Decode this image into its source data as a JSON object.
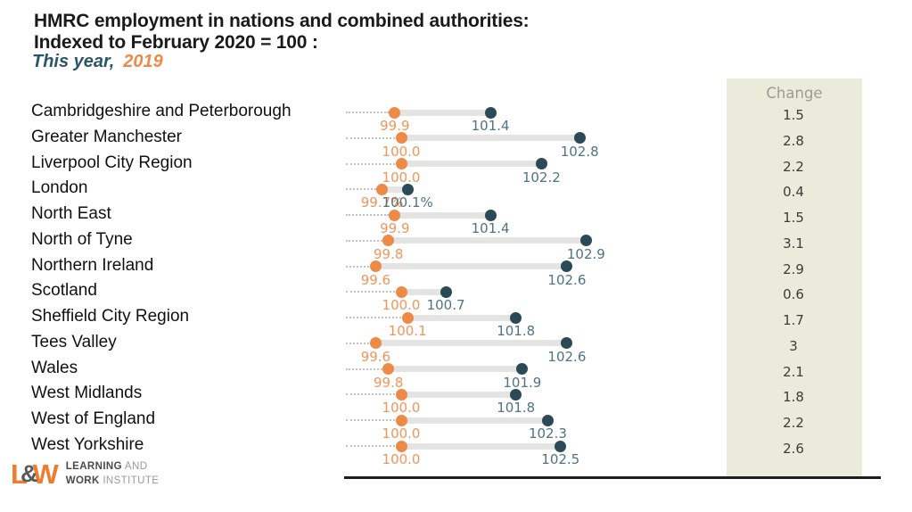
{
  "chart_data": {
    "type": "dumbbell",
    "title_line1": "HMRC employment in nations and combined authorities:",
    "title_line2": "Indexed to February 2020 = 100 :",
    "legend": {
      "this_year_label": "This year,",
      "year_2019_label": "2019"
    },
    "series_names": [
      "This year",
      "2019"
    ],
    "x_base": 100,
    "xlim": [
      99.1,
      103.5
    ],
    "change_header": "Change",
    "rows": [
      {
        "label": "Cambridgeshire and Peterborough",
        "this_year": 99.9,
        "this_year_label": "99.9",
        "y2019": 101.4,
        "y2019_label": "101.4",
        "change": "1.5"
      },
      {
        "label": "Greater Manchester",
        "this_year": 100.0,
        "this_year_label": "100.0",
        "y2019": 102.8,
        "y2019_label": "102.8",
        "change": "2.8"
      },
      {
        "label": "Liverpool City Region",
        "this_year": 100.0,
        "this_year_label": "100.0",
        "y2019": 102.2,
        "y2019_label": "102.2",
        "change": "2.2"
      },
      {
        "label": "London",
        "this_year": 99.7,
        "this_year_label": "99.7%",
        "y2019": 100.1,
        "y2019_label": "100.1%",
        "change": "0.4"
      },
      {
        "label": "North East",
        "this_year": 99.9,
        "this_year_label": "99.9",
        "y2019": 101.4,
        "y2019_label": "101.4",
        "change": "1.5"
      },
      {
        "label": "North of Tyne",
        "this_year": 99.8,
        "this_year_label": "99.8",
        "y2019": 102.9,
        "y2019_label": "102.9",
        "change": "3.1"
      },
      {
        "label": "Northern Ireland",
        "this_year": 99.6,
        "this_year_label": "99.6",
        "y2019": 102.6,
        "y2019_label": "102.6",
        "change": "2.9"
      },
      {
        "label": "Scotland",
        "this_year": 100.0,
        "this_year_label": "100.0",
        "y2019": 100.7,
        "y2019_label": "100.7",
        "change": "0.6"
      },
      {
        "label": "Sheffield City Region",
        "this_year": 100.1,
        "this_year_label": "100.1",
        "y2019": 101.8,
        "y2019_label": "101.8",
        "change": "1.7"
      },
      {
        "label": "Tees Valley",
        "this_year": 99.6,
        "this_year_label": "99.6",
        "y2019": 102.6,
        "y2019_label": "102.6",
        "change": "3"
      },
      {
        "label": "Wales",
        "this_year": 99.8,
        "this_year_label": "99.8",
        "y2019": 101.9,
        "y2019_label": "101.9",
        "change": "2.1"
      },
      {
        "label": "West Midlands",
        "this_year": 100.0,
        "this_year_label": "100.0",
        "y2019": 101.8,
        "y2019_label": "101.8",
        "change": "1.8"
      },
      {
        "label": "West of England",
        "this_year": 100.0,
        "this_year_label": "100.0",
        "y2019": 102.3,
        "y2019_label": "102.3",
        "change": "2.2"
      },
      {
        "label": "West Yorkshire",
        "this_year": 100.0,
        "this_year_label": "100.0",
        "y2019": 102.5,
        "y2019_label": "102.5",
        "change": "2.6"
      }
    ]
  },
  "colors": {
    "this_year_dot": "#ed8a47",
    "year_2019_dot": "#2b4956",
    "this_year_text": "#f0955c",
    "year_2019_text": "#507383",
    "connector_bar": "#e4e4e3",
    "change_panel_bg": "#ebebdc",
    "change_header_text": "#9c9c93",
    "subtitle_teal": "#2a5666",
    "subtitle_orange": "#ed8a47"
  },
  "logo": {
    "mark_l": "L",
    "mark_amp": "&",
    "mark_w": "W",
    "line1_bold": "LEARNING",
    "line1_light": " AND",
    "line2_bold": "WORK",
    "line2_light": " INSTITUTE"
  }
}
